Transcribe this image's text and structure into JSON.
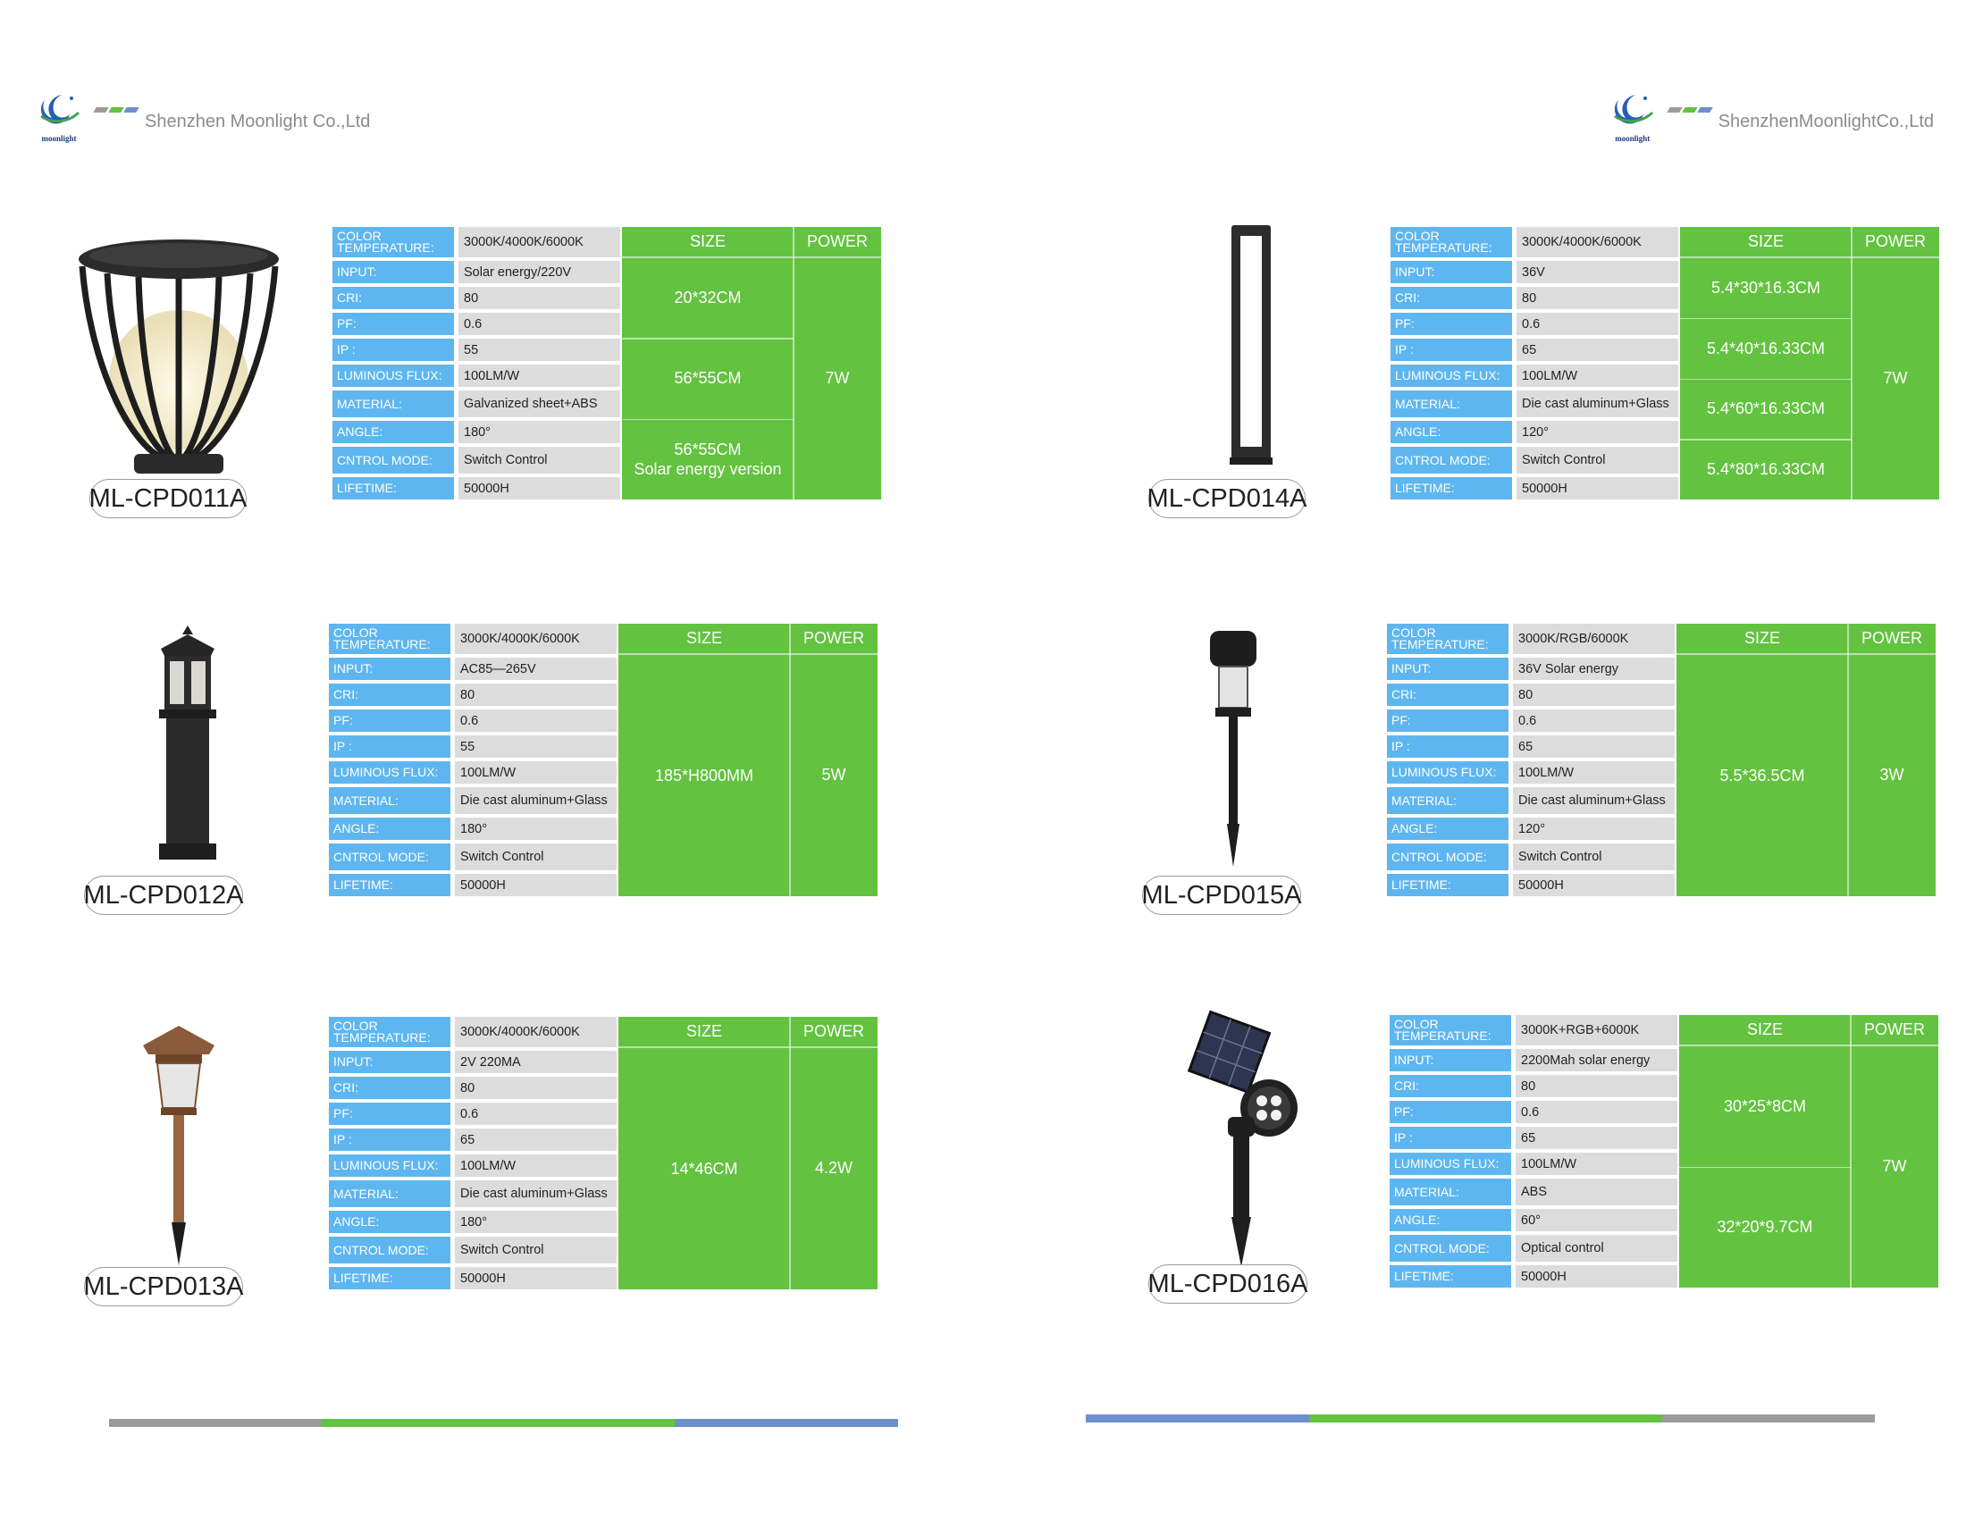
{
  "header": {
    "left_company": "Shenzhen Moonlight Co.,Ltd",
    "right_company": "ShenzhenMoonlightCo.,Ltd",
    "logo_word": "moonlight",
    "logo_icon": "moon-logo-icon"
  },
  "colors": {
    "label_blue": "#5eb6f0",
    "value_gray": "#dcdcdc",
    "green": "#63c240",
    "footer_gray": "#9b9b9b",
    "footer_green": "#63c240",
    "footer_blue": "#6d8fce"
  },
  "table_headers": {
    "size": "SIZE",
    "power": "POWER"
  },
  "products": [
    {
      "model": "ML-CPD011A",
      "image": "cage-lantern-lamp",
      "specs": [
        {
          "label": "COLOR TEMPERATURE:",
          "value": "3000K/4000K/6000K"
        },
        {
          "label": "INPUT:",
          "value": "Solar energy/220V"
        },
        {
          "label": "CRI:",
          "value": "80"
        },
        {
          "label": "PF:",
          "value": "0.6"
        },
        {
          "label": "IP :",
          "value": "55"
        },
        {
          "label": "LUMINOUS FLUX:",
          "value": "100LM/W"
        },
        {
          "label": "MATERIAL:",
          "value": "Galvanized sheet+ABS"
        },
        {
          "label": "ANGLE:",
          "value": "180°"
        },
        {
          "label": "CNTROL MODE:",
          "value": "Switch Control"
        },
        {
          "label": "LIFETIME:",
          "value": "50000H"
        }
      ],
      "sizes": [
        "20*32CM",
        "56*55CM",
        "56*55CM\nSolar energy version"
      ],
      "power": "7W"
    },
    {
      "model": "ML-CPD014A",
      "image": "rectangular-bollard-lamp",
      "specs": [
        {
          "label": "COLOR TEMPERATURE:",
          "value": "3000K/4000K/6000K"
        },
        {
          "label": "INPUT:",
          "value": "36V"
        },
        {
          "label": "CRI:",
          "value": "80"
        },
        {
          "label": "PF:",
          "value": "0.6"
        },
        {
          "label": "IP :",
          "value": "65"
        },
        {
          "label": "LUMINOUS FLUX:",
          "value": "100LM/W"
        },
        {
          "label": "MATERIAL:",
          "value": "Die cast aluminum+Glass"
        },
        {
          "label": "ANGLE:",
          "value": "120°"
        },
        {
          "label": "CNTROL MODE:",
          "value": "Switch Control"
        },
        {
          "label": "LIFETIME:",
          "value": "50000H"
        }
      ],
      "sizes": [
        "5.4*30*16.3CM",
        "5.4*40*16.33CM",
        "5.4*60*16.33CM",
        "5.4*80*16.33CM"
      ],
      "power": "7W"
    },
    {
      "model": "ML-CPD012A",
      "image": "lantern-pillar-lamp",
      "specs": [
        {
          "label": "COLOR TEMPERATURE:",
          "value": "3000K/4000K/6000K"
        },
        {
          "label": "INPUT:",
          "value": "AC85—265V"
        },
        {
          "label": "CRI:",
          "value": "80"
        },
        {
          "label": "PF:",
          "value": "0.6"
        },
        {
          "label": "IP :",
          "value": "55"
        },
        {
          "label": "LUMINOUS FLUX:",
          "value": "100LM/W"
        },
        {
          "label": "MATERIAL:",
          "value": "Die cast aluminum+Glass"
        },
        {
          "label": "ANGLE:",
          "value": "180°"
        },
        {
          "label": "CNTROL MODE:",
          "value": "Switch Control"
        },
        {
          "label": "LIFETIME:",
          "value": "50000H"
        }
      ],
      "sizes": [
        "185*H800MM"
      ],
      "power": "5W"
    },
    {
      "model": "ML-CPD015A",
      "image": "solar-stake-light",
      "specs": [
        {
          "label": "COLOR TEMPERATURE:",
          "value": "3000K/RGB/6000K"
        },
        {
          "label": "INPUT:",
          "value": "36V  Solar energy"
        },
        {
          "label": "CRI:",
          "value": "80"
        },
        {
          "label": "PF:",
          "value": "0.6"
        },
        {
          "label": "IP :",
          "value": "65"
        },
        {
          "label": "LUMINOUS FLUX:",
          "value": "100LM/W"
        },
        {
          "label": "MATERIAL:",
          "value": "Die cast aluminum+Glass"
        },
        {
          "label": "ANGLE:",
          "value": "120°"
        },
        {
          "label": "CNTROL MODE:",
          "value": "Switch Control"
        },
        {
          "label": "LIFETIME:",
          "value": "50000H"
        }
      ],
      "sizes": [
        "5.5*36.5CM"
      ],
      "power": "3W"
    },
    {
      "model": "ML-CPD013A",
      "image": "copper-garden-stake-light",
      "specs": [
        {
          "label": "COLOR TEMPERATURE:",
          "value": "3000K/4000K/6000K"
        },
        {
          "label": "INPUT:",
          "value": "2V 220MA"
        },
        {
          "label": "CRI:",
          "value": "80"
        },
        {
          "label": "PF:",
          "value": "0.6"
        },
        {
          "label": "IP :",
          "value": "65"
        },
        {
          "label": "LUMINOUS FLUX:",
          "value": "100LM/W"
        },
        {
          "label": "MATERIAL:",
          "value": "Die cast aluminum+Glass"
        },
        {
          "label": "ANGLE:",
          "value": "180°"
        },
        {
          "label": "CNTROL MODE:",
          "value": "Switch Control"
        },
        {
          "label": "LIFETIME:",
          "value": "50000H"
        }
      ],
      "sizes": [
        "14*46CM"
      ],
      "power": "4.2W"
    },
    {
      "model": "ML-CPD016A",
      "image": "solar-spotlight-stake",
      "specs": [
        {
          "label": "COLOR TEMPERATURE:",
          "value": "3000K+RGB+6000K"
        },
        {
          "label": "INPUT:",
          "value": "2200Mah solar energy"
        },
        {
          "label": "CRI:",
          "value": "80"
        },
        {
          "label": "PF:",
          "value": "0.6"
        },
        {
          "label": "IP :",
          "value": "65"
        },
        {
          "label": "LUMINOUS FLUX:",
          "value": "100LM/W"
        },
        {
          "label": "MATERIAL:",
          "value": "ABS"
        },
        {
          "label": "ANGLE:",
          "value": "60°"
        },
        {
          "label": "CNTROL MODE:",
          "value": "Optical control"
        },
        {
          "label": "LIFETIME:",
          "value": "50000H"
        }
      ],
      "sizes": [
        "30*25*8CM",
        "32*20*9.7CM"
      ],
      "power": "7W"
    }
  ]
}
